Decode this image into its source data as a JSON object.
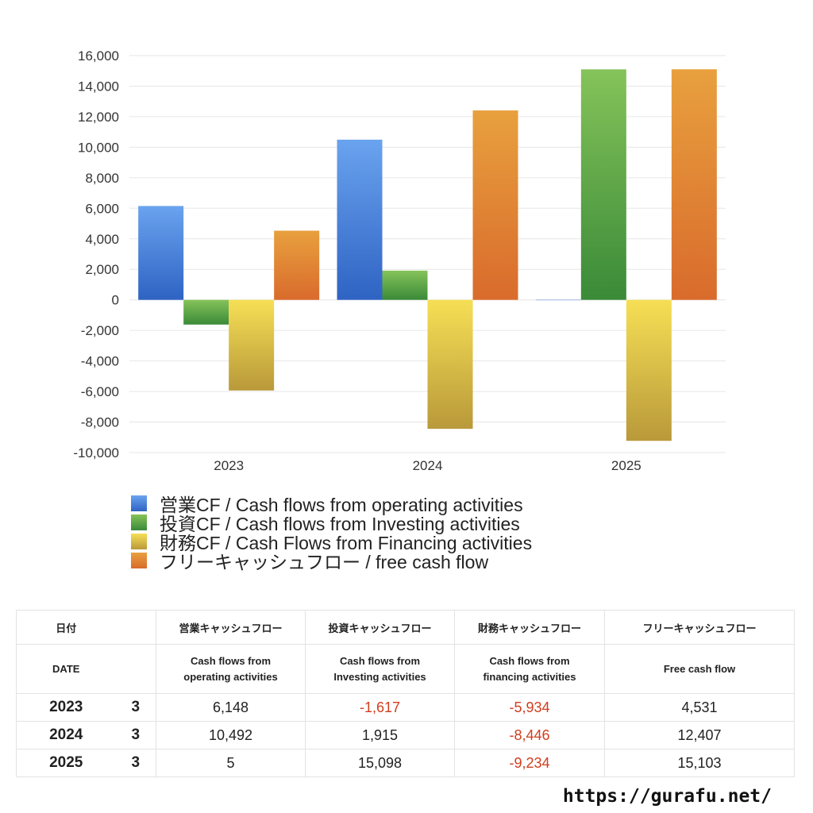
{
  "chart_data": {
    "type": "bar",
    "categories": [
      "2023",
      "2024",
      "2025"
    ],
    "ylim": [
      -10000,
      16000
    ],
    "y_ticks": [
      "16,000",
      "14,000",
      "12,000",
      "10,000",
      "8,000",
      "6,000",
      "4,000",
      "2,000",
      "0",
      "-2,000",
      "-4,000",
      "-6,000",
      "-8,000",
      "-10,000"
    ],
    "grid": true,
    "legend_position": "bottom-left",
    "series": [
      {
        "name": "営業CF / Cash flows from operating activities",
        "values": [
          6148,
          10492,
          5
        ],
        "color_top": "#6aa3ef",
        "color_bottom": "#2f63c3"
      },
      {
        "name": "投資CF / Cash flows from Investing activities",
        "values": [
          -1617,
          1915,
          15098
        ],
        "color_top": "#85c35a",
        "color_bottom": "#3a8a38"
      },
      {
        "name": "財務CF / Cash Flows from Financing activities",
        "values": [
          -5934,
          -8446,
          -9234
        ],
        "color_top": "#f6df55",
        "color_bottom": "#b9993a"
      },
      {
        "name": "フリーキャッシュフロー / free cash flow",
        "values": [
          4531,
          12407,
          15103
        ],
        "color_top": "#e8a03e",
        "color_bottom": "#d96b2c"
      }
    ]
  },
  "table": {
    "headers_jp": [
      "日付",
      "営業キャッシュフロー",
      "投資キャッシュフロー",
      "財務キャッシュフロー",
      "フリーキャッシュフロー"
    ],
    "header_date_en": "DATE",
    "headers_en": [
      [
        "Cash flows from",
        "operating activities"
      ],
      [
        "Cash flows from",
        "Investing activities"
      ],
      [
        "Cash flows from",
        "financing activities"
      ],
      [
        "Free cash flow",
        ""
      ]
    ],
    "rows": [
      {
        "year": "2023",
        "month": "3",
        "cells": [
          {
            "v": "6,148",
            "neg": false
          },
          {
            "v": "-1,617",
            "neg": true
          },
          {
            "v": "-5,934",
            "neg": true
          },
          {
            "v": "4,531",
            "neg": false
          }
        ]
      },
      {
        "year": "2024",
        "month": "3",
        "cells": [
          {
            "v": "10,492",
            "neg": false
          },
          {
            "v": "1,915",
            "neg": false
          },
          {
            "v": "-8,446",
            "neg": true
          },
          {
            "v": "12,407",
            "neg": false
          }
        ]
      },
      {
        "year": "2025",
        "month": "3",
        "cells": [
          {
            "v": "5",
            "neg": false
          },
          {
            "v": "15,098",
            "neg": false
          },
          {
            "v": "-9,234",
            "neg": true
          },
          {
            "v": "15,103",
            "neg": false
          }
        ]
      }
    ]
  },
  "footer": {
    "url": "https://gurafu.net/"
  },
  "colors": {
    "negative": "#d23d1e",
    "grid": "#e6e6e6"
  }
}
